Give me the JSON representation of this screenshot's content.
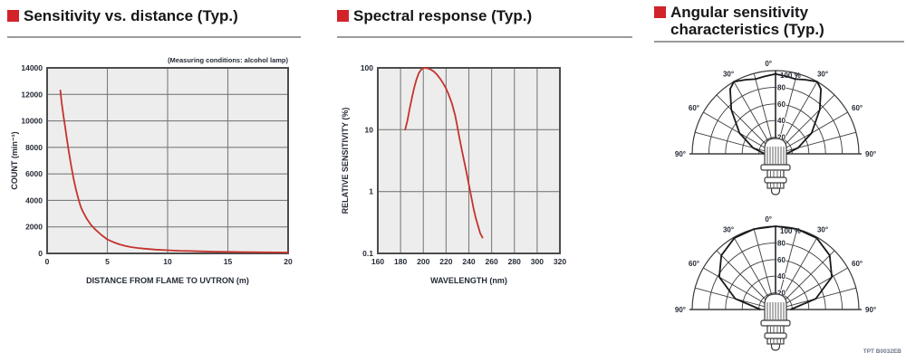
{
  "colors": {
    "accent_red": "#d2232a",
    "curve_red": "#c4332c",
    "plot_bg": "#ededed",
    "grid": "#7d7d7d",
    "plot_border": "#4c4c4c",
    "axis_text": "#242a35",
    "polar_line": "#3c3c3c",
    "lobe_line": "#17171c",
    "title_text": "#17171a",
    "title_rule": "#9b9b9b"
  },
  "panels": [
    {
      "title": "Sensitivity vs. distance (Typ.)"
    },
    {
      "title": "Spectral response (Typ.)"
    },
    {
      "title_line1": "Angular sensitivity",
      "title_line2": "characteristics (Typ.)"
    }
  ],
  "footer_code": "TPT B0032EB",
  "chart_data": [
    {
      "id": "sensitivity_vs_distance",
      "type": "line",
      "title": "Sensitivity vs. distance (Typ.)",
      "note": "(Measuring conditions: alcohol lamp)",
      "xlabel": "DISTANCE FROM FLAME TO UVTRON (m)",
      "ylabel": "COUNT (min⁻¹)",
      "xlim": [
        0,
        20
      ],
      "ylim": [
        0,
        14000
      ],
      "xticks": [
        0,
        5,
        10,
        15,
        20
      ],
      "yticks": [
        0,
        2000,
        4000,
        6000,
        8000,
        10000,
        12000,
        14000
      ],
      "x_gridlines": [
        5,
        10,
        15
      ],
      "grid": true,
      "legend": "none",
      "points": [
        [
          1.1,
          12300
        ],
        [
          1.2,
          11400
        ],
        [
          1.35,
          10400
        ],
        [
          1.5,
          9500
        ],
        [
          1.65,
          8600
        ],
        [
          1.8,
          7700
        ],
        [
          2.0,
          6600
        ],
        [
          2.2,
          5600
        ],
        [
          2.4,
          4800
        ],
        [
          2.6,
          4100
        ],
        [
          2.8,
          3500
        ],
        [
          3.0,
          3100
        ],
        [
          3.3,
          2600
        ],
        [
          3.6,
          2200
        ],
        [
          4.0,
          1800
        ],
        [
          4.5,
          1400
        ],
        [
          5.0,
          1050
        ],
        [
          5.5,
          850
        ],
        [
          6.0,
          680
        ],
        [
          6.5,
          560
        ],
        [
          7.0,
          470
        ],
        [
          7.5,
          410
        ],
        [
          8.0,
          360
        ],
        [
          9.0,
          290
        ],
        [
          10.0,
          240
        ],
        [
          11.0,
          200
        ],
        [
          12.0,
          175
        ],
        [
          13.0,
          150
        ],
        [
          14.0,
          130
        ],
        [
          15.0,
          115
        ],
        [
          16.0,
          105
        ],
        [
          17.0,
          95
        ],
        [
          18.0,
          85
        ],
        [
          19.0,
          75
        ],
        [
          20.0,
          70
        ]
      ]
    },
    {
      "id": "spectral_response",
      "type": "line",
      "title": "Spectral response (Typ.)",
      "xlabel": "WAVELENGTH (nm)",
      "ylabel": "RELATIVE SENSITIVITY (%)",
      "xlim": [
        160,
        320
      ],
      "ylim": [
        0.1,
        100
      ],
      "yscale": "log",
      "xticks": [
        160,
        180,
        200,
        220,
        240,
        260,
        280,
        300,
        320
      ],
      "yticks": [
        0.1,
        1,
        10,
        100
      ],
      "ytick_labels": [
        "0.1",
        "1",
        "10",
        "100"
      ],
      "grid": true,
      "legend": "none",
      "points": [
        [
          184,
          10
        ],
        [
          186,
          14
        ],
        [
          188,
          22
        ],
        [
          190,
          33
        ],
        [
          192,
          48
        ],
        [
          194,
          65
        ],
        [
          196,
          82
        ],
        [
          198,
          93
        ],
        [
          200,
          100
        ],
        [
          203,
          99
        ],
        [
          206,
          95
        ],
        [
          209,
          88
        ],
        [
          212,
          78
        ],
        [
          215,
          66
        ],
        [
          218,
          54
        ],
        [
          220,
          46
        ],
        [
          222,
          38
        ],
        [
          225,
          27
        ],
        [
          228,
          17
        ],
        [
          230,
          11
        ],
        [
          232,
          7
        ],
        [
          234,
          4.5
        ],
        [
          236,
          3
        ],
        [
          238,
          2
        ],
        [
          240,
          1.3
        ],
        [
          242,
          0.85
        ],
        [
          244,
          0.55
        ],
        [
          246,
          0.38
        ],
        [
          248,
          0.28
        ],
        [
          250,
          0.21
        ],
        [
          252,
          0.18
        ]
      ]
    },
    {
      "id": "angular_sensitivity_top",
      "type": "polar",
      "title": "Angular sensitivity characteristics (Typ.)",
      "angle_labels": [
        "0°",
        "30°",
        "60°",
        "90°"
      ],
      "labeled_angles_deg": [
        0,
        30,
        60,
        90
      ],
      "radial_labels": [
        "100 %",
        "80",
        "60",
        "40",
        "20"
      ],
      "rings_pct": [
        20,
        40,
        60,
        80,
        100
      ],
      "spoke_step_deg": 15,
      "lobe": {
        "angles_deg": [
          -90,
          -75,
          -60,
          -45,
          -35,
          -30,
          -22,
          -15,
          -8,
          0,
          8,
          15,
          22,
          30,
          35,
          45,
          60,
          75,
          90
        ],
        "values_pct": [
          13,
          28,
          50,
          75,
          95,
          100,
          96,
          93,
          94,
          96,
          94,
          93,
          96,
          100,
          95,
          75,
          50,
          28,
          13
        ]
      }
    },
    {
      "id": "angular_sensitivity_bottom",
      "type": "polar",
      "title": "Angular sensitivity characteristics (Typ.)",
      "angle_labels": [
        "0°",
        "30°",
        "60°",
        "90°"
      ],
      "labeled_angles_deg": [
        0,
        30,
        60,
        90
      ],
      "radial_labels": [
        "100 %",
        "80",
        "60",
        "40",
        "20"
      ],
      "rings_pct": [
        20,
        40,
        60,
        80,
        100
      ],
      "spoke_step_deg": 15,
      "lobe": {
        "angles_deg": [
          -90,
          -75,
          -60,
          -45,
          -30,
          -15,
          0,
          15,
          30,
          45,
          60,
          75,
          90
        ],
        "values_pct": [
          18,
          50,
          78,
          92,
          99,
          100,
          100,
          100,
          99,
          92,
          78,
          50,
          18
        ]
      }
    }
  ]
}
